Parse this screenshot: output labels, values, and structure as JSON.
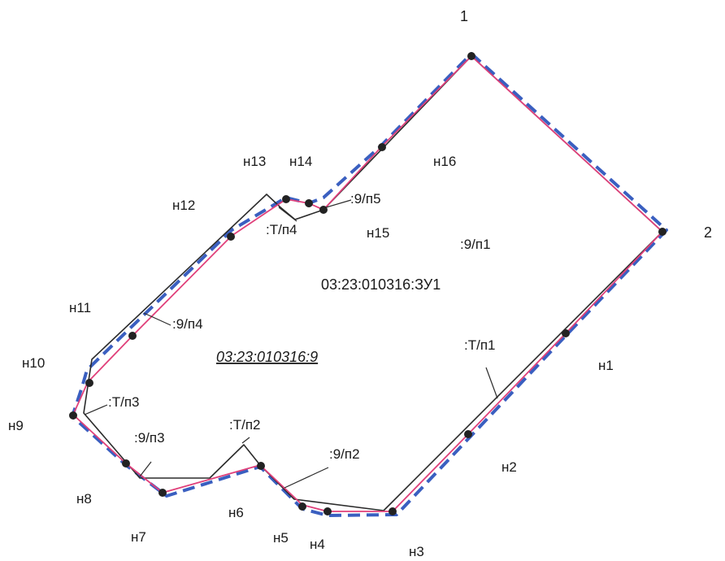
{
  "corner_labels": {
    "c1": "1",
    "c2": "2"
  },
  "n_labels": {
    "n1": "н1",
    "n2": "н2",
    "n3": "н3",
    "n4": "н4",
    "n5": "н5",
    "n6": "н6",
    "n7": "н7",
    "n8": "н8",
    "n9": "н9",
    "n10": "н10",
    "n11": "н11",
    "n12": "н12",
    "n13": "н13",
    "n14": "н14",
    "n15": "н15",
    "n16": "н16"
  },
  "part_labels": {
    "p9_1": ":9/п1",
    "p9_2": ":9/п2",
    "p9_3": ":9/п3",
    "p9_4": ":9/п4",
    "p9_5": ":9/п5",
    "t1": ":Т/п1",
    "t2": ":Т/п2",
    "t3": ":Т/п3",
    "t4": ":Т/п4"
  },
  "cadastral": {
    "new_plot": "03:23:010316:ЗУ1",
    "existing_plot": "03:23:010316:9"
  },
  "colors": {
    "existing_boundary": "#2b2b2b",
    "new_boundary": "#e0407a",
    "dashed_boundary": "#3a5fc0",
    "point": "#222222"
  }
}
